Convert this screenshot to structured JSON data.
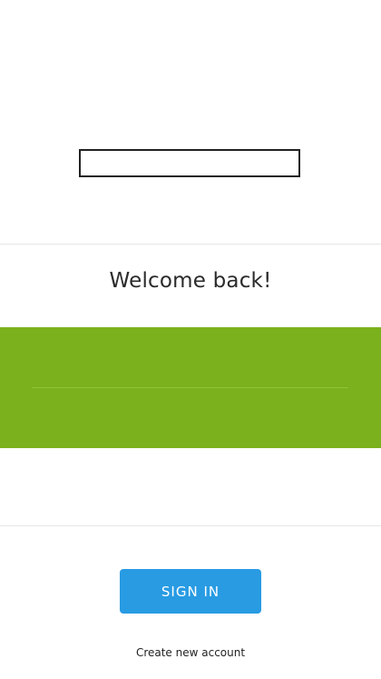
{
  "login": {
    "welcome_text": "Welcome back!",
    "sign_in_label": "SIGN IN",
    "create_account_label": "Create new account"
  },
  "colors": {
    "panel_green": "#7ab11c",
    "button_blue": "#289be3"
  }
}
